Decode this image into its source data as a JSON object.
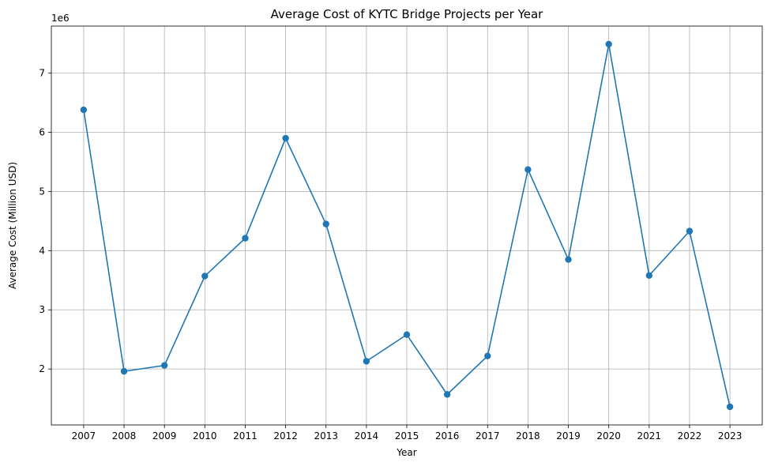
{
  "chart_data": {
    "type": "line",
    "title": "Average Cost of KYTC Bridge Projects per Year",
    "xlabel": "Year",
    "ylabel": "Average Cost (Million USD)",
    "y_offset_label": "1e6",
    "x": [
      "2007",
      "2008",
      "2009",
      "2010",
      "2011",
      "2012",
      "2013",
      "2014",
      "2015",
      "2016",
      "2017",
      "2018",
      "2019",
      "2020",
      "2021",
      "2022",
      "2023"
    ],
    "series": [
      {
        "values": [
          6380000,
          1960000,
          2060000,
          3570000,
          4210000,
          5900000,
          4450000,
          2130000,
          2580000,
          1570000,
          2220000,
          5370000,
          3850000,
          7490000,
          3580000,
          4330000,
          1360000
        ],
        "color": "#1f77b4"
      }
    ],
    "y_ticks": [
      2000000,
      3000000,
      4000000,
      5000000,
      6000000,
      7000000
    ],
    "y_tick_labels": [
      "2",
      "3",
      "4",
      "5",
      "6",
      "7"
    ],
    "ylim": [
      1054000,
      7796000
    ],
    "grid": true,
    "marker": "circle"
  }
}
